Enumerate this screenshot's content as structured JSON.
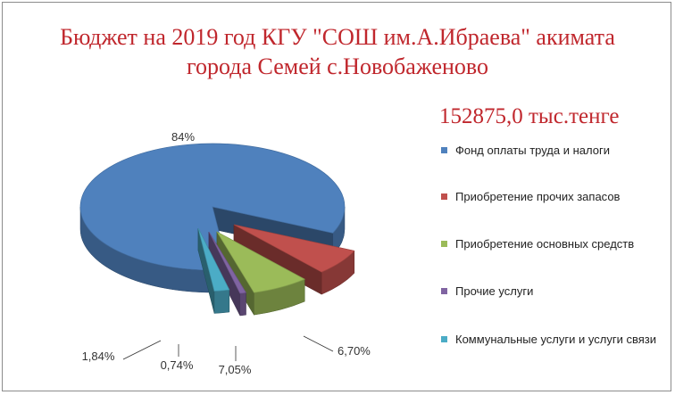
{
  "chart_data": {
    "type": "pie",
    "title_lines": [
      "Бюджет на 2019 год КГУ \"СОШ им.А.Ибраева\" акимата",
      "города Семей с.Новобаженово"
    ],
    "subtitle": "152875,0 тыс.тенге",
    "categories": [
      "Фонд оплаты труда и налоги",
      "Приобретение  прочих запасов",
      "Приобретение  основных средств",
      "Прочие  услуги",
      "Коммунальные  услуги и услуги связи"
    ],
    "values": [
      84,
      6.7,
      7.05,
      0.74,
      1.84
    ],
    "data_labels": [
      "84%",
      "6,70%",
      "7,05%",
      "0,74%",
      "1,84%"
    ],
    "colors": [
      "#4f81bd",
      "#c0504d",
      "#9bbb59",
      "#8064a2",
      "#4bacc6"
    ],
    "legend_position": "right",
    "exploded": true,
    "three_d": true
  }
}
